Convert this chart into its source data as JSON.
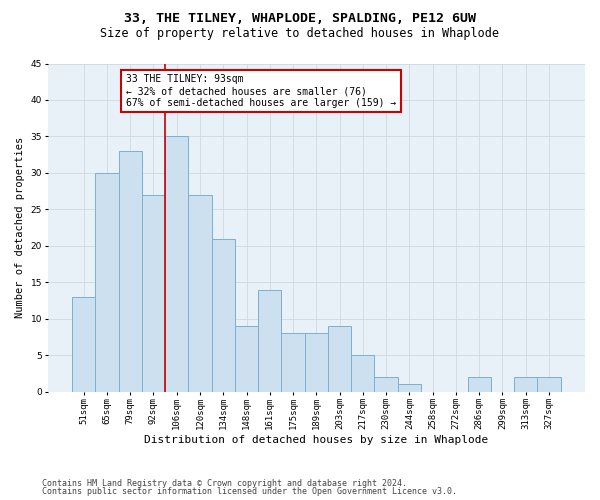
{
  "title": "33, THE TILNEY, WHAPLODE, SPALDING, PE12 6UW",
  "subtitle": "Size of property relative to detached houses in Whaplode",
  "xlabel": "Distribution of detached houses by size in Whaplode",
  "ylabel": "Number of detached properties",
  "categories": [
    "51sqm",
    "65sqm",
    "79sqm",
    "92sqm",
    "106sqm",
    "120sqm",
    "134sqm",
    "148sqm",
    "161sqm",
    "175sqm",
    "189sqm",
    "203sqm",
    "217sqm",
    "230sqm",
    "244sqm",
    "258sqm",
    "272sqm",
    "286sqm",
    "299sqm",
    "313sqm",
    "327sqm"
  ],
  "values": [
    13,
    30,
    33,
    27,
    35,
    27,
    21,
    9,
    14,
    8,
    8,
    9,
    5,
    2,
    1,
    0,
    0,
    2,
    0,
    2,
    2
  ],
  "bar_color": "#cce0f0",
  "bar_edge_color": "#7ab0d4",
  "bar_width": 1.0,
  "ylim": [
    0,
    45
  ],
  "yticks": [
    0,
    5,
    10,
    15,
    20,
    25,
    30,
    35,
    40,
    45
  ],
  "grid_color": "#d0d8e0",
  "bg_color": "#e8f0f8",
  "red_line_x": 3.5,
  "annotation_text": "33 THE TILNEY: 93sqm\n← 32% of detached houses are smaller (76)\n67% of semi-detached houses are larger (159) →",
  "annotation_box_color": "#ffffff",
  "annotation_box_edge": "#cc0000",
  "footer1": "Contains HM Land Registry data © Crown copyright and database right 2024.",
  "footer2": "Contains public sector information licensed under the Open Government Licence v3.0.",
  "title_fontsize": 9.5,
  "subtitle_fontsize": 8.5,
  "xlabel_fontsize": 8,
  "ylabel_fontsize": 7.5,
  "tick_fontsize": 6.5,
  "annotation_fontsize": 7,
  "footer_fontsize": 6
}
